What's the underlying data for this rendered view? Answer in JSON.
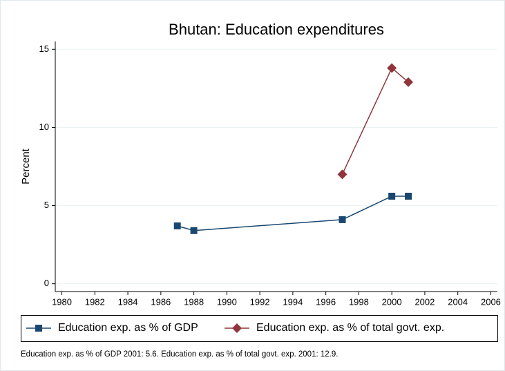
{
  "chart_data": {
    "type": "line",
    "title": "Bhutan: Education expenditures",
    "y_label": "Percent",
    "x": [
      1987,
      1988,
      1997,
      2000,
      2001
    ],
    "series": [
      {
        "name": "Education exp. as % of GDP",
        "color": "#1a476f",
        "marker": "square",
        "values": [
          3.7,
          3.4,
          4.1,
          5.6,
          5.6
        ]
      },
      {
        "name": "Education exp. as % of total govt. exp.",
        "color": "#90353b",
        "marker": "diamond",
        "values": [
          null,
          null,
          7.0,
          13.8,
          12.9
        ]
      }
    ],
    "xlim": [
      1979.6,
      2006.4
    ],
    "xticks": [
      1980,
      1982,
      1984,
      1986,
      1988,
      1990,
      1992,
      1994,
      1996,
      1998,
      2000,
      2002,
      2004,
      2006
    ],
    "ylim": [
      -0.5,
      15.5
    ],
    "yticks": [
      0,
      5,
      10,
      15
    ],
    "grid": true,
    "legend": "bottom",
    "note": "Education exp. as % of GDP 2001: 5.6. Education exp. as % of total govt. exp. 2001: 12.9."
  }
}
